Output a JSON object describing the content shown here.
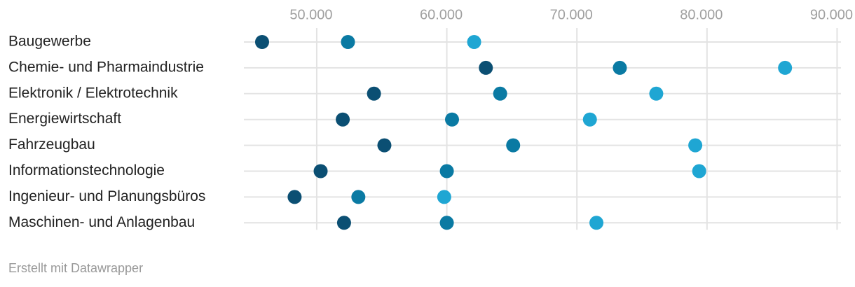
{
  "chart_data": {
    "type": "dot",
    "categories": [
      "Baugewerbe",
      "Chemie- und Pharmaindustrie",
      "Elektronik / Elektrotechnik",
      "Energiewirtschaft",
      "Fahrzeugbau",
      "Informationstechnologie",
      "Ingenieur- und Planungsbüros",
      "Maschinen- und Anlagenbau"
    ],
    "series": [
      {
        "color": "#0b4f73",
        "values": [
          45800,
          63000,
          54400,
          52000,
          55200,
          50300,
          48300,
          52100
        ]
      },
      {
        "color": "#0a7aa3",
        "values": [
          52400,
          73300,
          64100,
          60400,
          65100,
          60000,
          53200,
          60000
        ]
      },
      {
        "color": "#1fa6d3",
        "values": [
          62100,
          86000,
          76100,
          71000,
          79100,
          79400,
          59800,
          71500
        ]
      }
    ],
    "xlim": [
      44400,
      90300
    ],
    "xticks": [
      {
        "value": 50000,
        "label": "50.000"
      },
      {
        "value": 60000,
        "label": "60.000"
      },
      {
        "value": 70000,
        "label": "70.000"
      },
      {
        "value": 80000,
        "label": "80.000"
      },
      {
        "value": 90000,
        "label": "90.000"
      }
    ],
    "grid": true,
    "footer": "Erstellt mit Datawrapper"
  }
}
